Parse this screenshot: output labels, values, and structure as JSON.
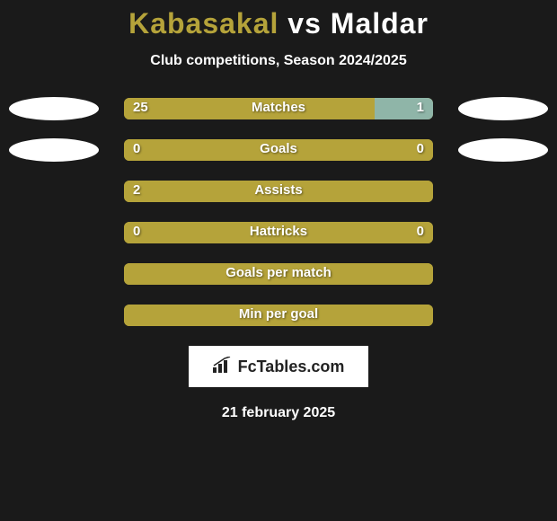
{
  "header": {
    "player1": "Kabasakal",
    "vs": "vs",
    "player2": "Maldar",
    "player1_color": "#b5a33a",
    "vs_color": "#ffffff",
    "player2_color": "#ffffff",
    "subtitle": "Club competitions, Season 2024/2025"
  },
  "stats": [
    {
      "label": "Matches",
      "left_value": "25",
      "right_value": "1",
      "left_pct": 81,
      "right_pct": 19,
      "show_ovals": true
    },
    {
      "label": "Goals",
      "left_value": "0",
      "right_value": "0",
      "left_pct": 100,
      "right_pct": 0,
      "show_ovals": true
    },
    {
      "label": "Assists",
      "left_value": "2",
      "right_value": "",
      "left_pct": 100,
      "right_pct": 0,
      "show_ovals": false
    },
    {
      "label": "Hattricks",
      "left_value": "0",
      "right_value": "0",
      "left_pct": 100,
      "right_pct": 0,
      "show_ovals": false
    },
    {
      "label": "Goals per match",
      "left_value": "",
      "right_value": "",
      "left_pct": 100,
      "right_pct": 0,
      "show_ovals": false
    },
    {
      "label": "Min per goal",
      "left_value": "",
      "right_value": "",
      "left_pct": 100,
      "right_pct": 0,
      "show_ovals": false
    }
  ],
  "colors": {
    "background": "#1a1a1a",
    "bar_left": "#b5a33a",
    "bar_right": "#8fb5a8",
    "oval": "#ffffff",
    "text": "#ffffff"
  },
  "branding": {
    "text": "FcTables.com"
  },
  "footer": {
    "date": "21 february 2025"
  }
}
